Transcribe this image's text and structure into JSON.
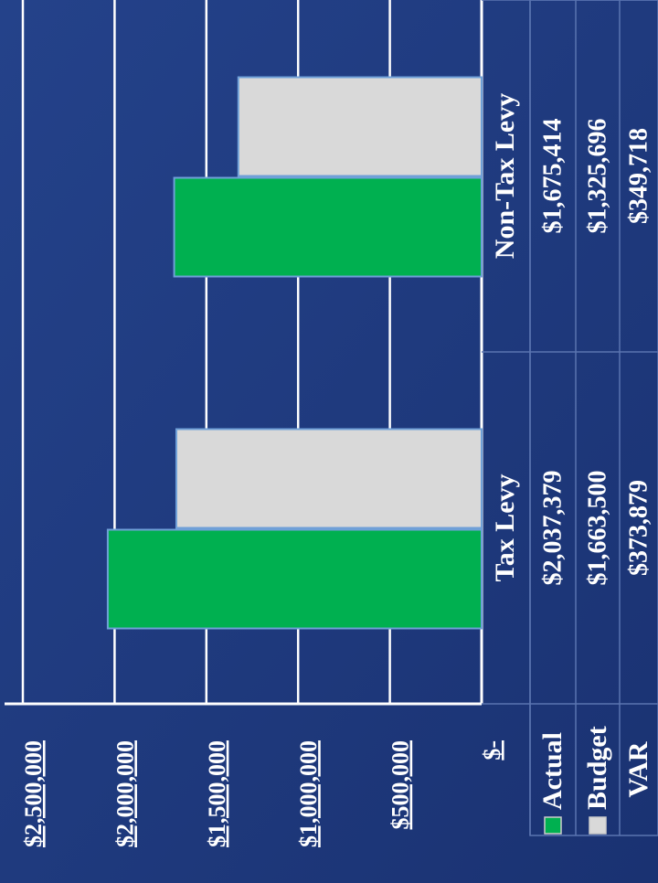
{
  "chart_data": {
    "type": "bar",
    "categories": [
      "Tax Levy",
      "Non-Tax Levy"
    ],
    "series": [
      {
        "name": "Actual",
        "color": "#00b050",
        "values": [
          2037379,
          1675414
        ],
        "value_labels": [
          "$2,037,379",
          "$1,675,414"
        ]
      },
      {
        "name": "Budget",
        "color": "#d9d9d9",
        "values": [
          1663500,
          1325696
        ],
        "value_labels": [
          "$1,663,500",
          "$1,325,696"
        ]
      }
    ],
    "table_extra": {
      "name": "VAR",
      "values": [
        373879,
        349718
      ],
      "value_labels": [
        "$373,879",
        "$349,718"
      ]
    },
    "ylim": [
      0,
      2500000
    ],
    "yticks": [
      {
        "value": 0,
        "label": "$-"
      },
      {
        "value": 500000,
        "label": "$500,000"
      },
      {
        "value": 1000000,
        "label": "$1,000,000"
      },
      {
        "value": 1500000,
        "label": "$1,500,000"
      },
      {
        "value": 2000000,
        "label": "$2,000,000"
      },
      {
        "value": 2500000,
        "label": "$2,500,000"
      }
    ],
    "grid": true
  }
}
